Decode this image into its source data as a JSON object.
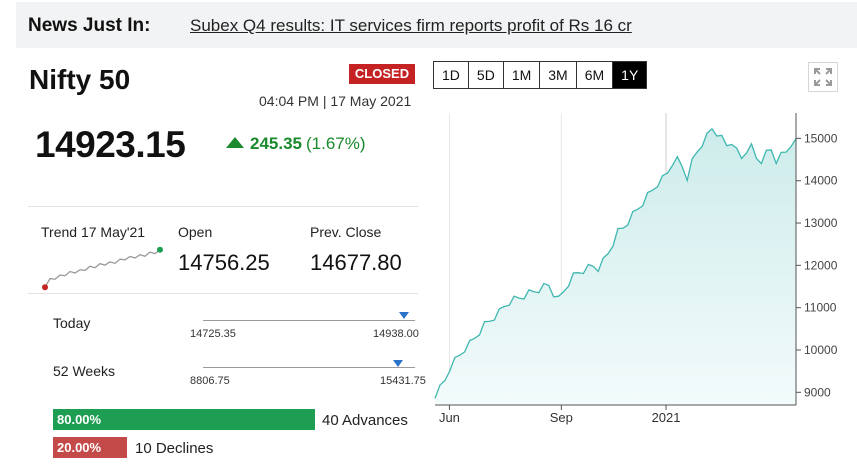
{
  "news": {
    "title": "News Just In:",
    "headline": "Subex Q4 results: IT services firm reports profit of Rs 16 cr"
  },
  "index": {
    "name": "Nifty 50",
    "status": "CLOSED",
    "timestamp": "04:04 PM | 17 May 2021",
    "price": "14923.15",
    "change": "245.35",
    "change_pct": "(1.67%)"
  },
  "stats": {
    "trend_label": "Trend 17 May'21",
    "open_label": "Open",
    "open_value": "14756.25",
    "prev_close_label": "Prev. Close",
    "prev_close_value": "14677.80"
  },
  "ranges": {
    "today": {
      "label": "Today",
      "low": "14725.35",
      "high": "14938.00",
      "position": 0.95
    },
    "weeks52": {
      "label": "52 Weeks",
      "low": "8806.75",
      "high": "15431.75",
      "position": 0.92
    }
  },
  "breadth": {
    "advances_pct": "80.00%",
    "advances_text": "40 Advances",
    "declines_pct": "20.00%",
    "declines_text": "10 Declines"
  },
  "periods": [
    {
      "label": "1D",
      "active": false
    },
    {
      "label": "5D",
      "active": false
    },
    {
      "label": "1M",
      "active": false
    },
    {
      "label": "3M",
      "active": false
    },
    {
      "label": "6M",
      "active": false
    },
    {
      "label": "1Y",
      "active": true
    }
  ],
  "icons": {
    "expand": "expand-icon",
    "up_arrow": "triangle-up-icon"
  },
  "colors": {
    "up": "#1a8a2c",
    "closed": "#c52323",
    "advance": "#1e9e53",
    "decline": "#c44a4a",
    "chart_line": "#3fb7b0",
    "chart_fill": "#cdeceb"
  },
  "chart_data": {
    "type": "area",
    "x_ticks": [
      "Jun",
      "Sep",
      "2021"
    ],
    "y_ticks": [
      9000,
      10000,
      11000,
      12000,
      13000,
      14000,
      15000
    ],
    "ylim": [
      8700,
      15600
    ],
    "series": [
      {
        "values": [
          8950,
          9100,
          9300,
          9600,
          9750,
          9900,
          10050,
          10150,
          10300,
          10450,
          10600,
          10700,
          10800,
          10900,
          11050,
          11150,
          11200,
          11250,
          11300,
          11350,
          11400,
          11450,
          11500,
          11550,
          11350,
          11200,
          11400,
          11600,
          11750,
          11850,
          11900,
          11950,
          12000,
          11950,
          12100,
          12300,
          12550,
          12800,
          12900,
          13050,
          13200,
          13350,
          13500,
          13650,
          13800,
          13950,
          14050,
          14200,
          14450,
          14500,
          14350,
          14100,
          14450,
          14700,
          14900,
          15050,
          15250,
          15150,
          15000,
          14850,
          14950,
          14700,
          14550,
          14750,
          14800,
          14550,
          14500,
          14650,
          14750,
          14500,
          14600,
          14700,
          14900,
          14923
        ]
      }
    ]
  },
  "sparkline_data": {
    "values": [
      14725,
      14760,
      14770,
      14780,
      14790,
      14800,
      14805,
      14810,
      14820,
      14830,
      14835,
      14845,
      14850,
      14855,
      14860,
      14870,
      14880,
      14885,
      14890,
      14895,
      14900,
      14910,
      14915,
      14923
    ]
  }
}
